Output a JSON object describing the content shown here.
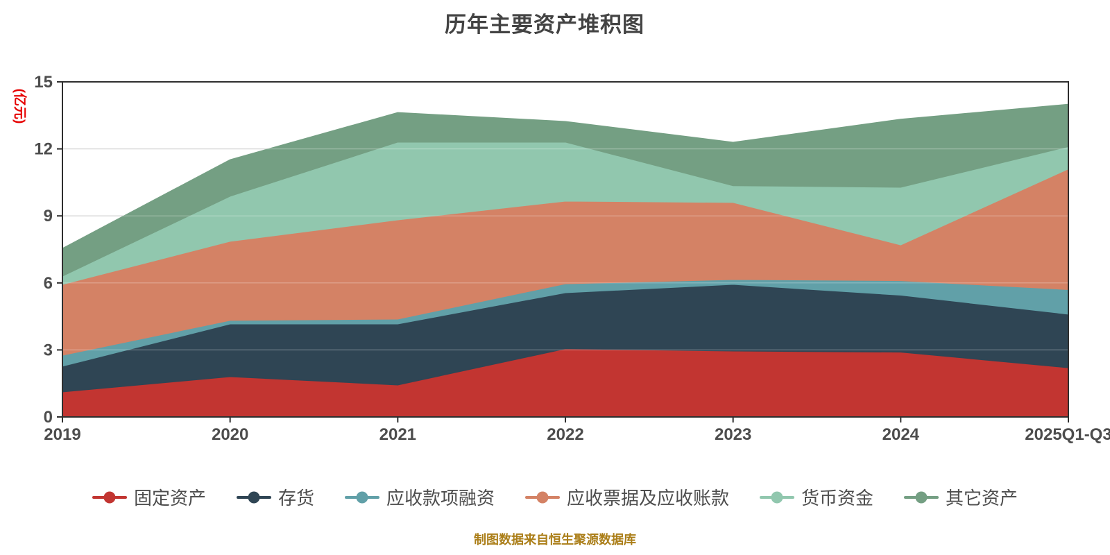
{
  "title": "历年主要资产堆积图",
  "footer": {
    "text": "制图数据来自恒生聚源数据库",
    "color": "#ab7e18"
  },
  "y_axis": {
    "name": "(亿元)",
    "name_color": "#e60000",
    "ticks": [
      0,
      3,
      6,
      9,
      12,
      15
    ],
    "min": 0,
    "max": 15
  },
  "x_axis": {
    "categories": [
      "2019",
      "2020",
      "2021",
      "2022",
      "2023",
      "2024",
      "2025Q1-Q3"
    ]
  },
  "colors": {
    "axis_line": "#2e2e2e",
    "grid_line": "#cccccc",
    "label_text": "#4d4d4d",
    "title_text": "#434343"
  },
  "chart_data": {
    "type": "area",
    "stacked": true,
    "grid": true,
    "legend_position": "bottom",
    "title": "历年主要资产堆积图",
    "ylabel": "(亿元)",
    "ylim": [
      0,
      15
    ],
    "categories": [
      "2019",
      "2020",
      "2021",
      "2022",
      "2023",
      "2024",
      "2025Q1-Q3"
    ],
    "series": [
      {
        "name": "固定资产",
        "color": "#c23531",
        "values": [
          1.12,
          1.8,
          1.43,
          3.05,
          2.95,
          2.9,
          2.2
        ]
      },
      {
        "name": "存货",
        "color": "#2f4554",
        "values": [
          1.15,
          2.36,
          2.73,
          2.51,
          2.98,
          2.55,
          2.4
        ]
      },
      {
        "name": "应收款项融资",
        "color": "#61a0a8",
        "values": [
          0.49,
          0.16,
          0.22,
          0.4,
          0.22,
          0.65,
          1.1
        ]
      },
      {
        "name": "应收票据及应收账款",
        "color": "#d48265",
        "values": [
          3.17,
          3.54,
          4.44,
          3.7,
          3.45,
          1.6,
          5.4
        ]
      },
      {
        "name": "货币资金",
        "color": "#91c7ae",
        "values": [
          0.37,
          2.02,
          3.48,
          2.64,
          0.75,
          2.58,
          1.0
        ]
      },
      {
        "name": "其它资产",
        "color": "#749f83",
        "values": [
          1.25,
          1.64,
          1.33,
          0.93,
          1.95,
          3.05,
          1.9
        ]
      }
    ],
    "totals": [
      7.55,
      11.52,
      13.63,
      13.23,
      12.3,
      13.33,
      14.0
    ]
  }
}
